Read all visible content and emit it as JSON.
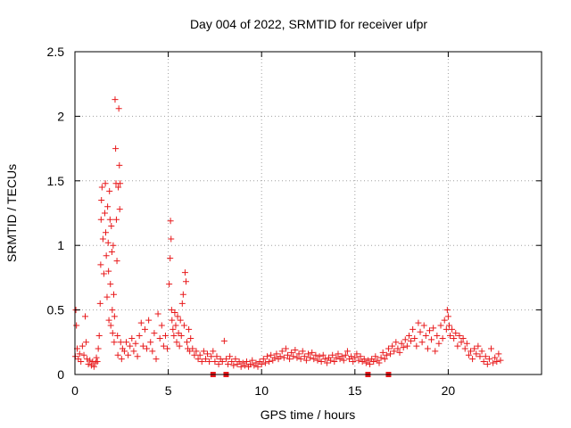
{
  "chart_data": {
    "type": "scatter",
    "title": "Day 004 of 2022, SRMTID for receiver ufpr",
    "xlabel": "GPS time / hours",
    "ylabel": "SRMTID / TECUs",
    "xlim": [
      0,
      25
    ],
    "ylim": [
      0,
      2.5
    ],
    "xticks": [
      0,
      5,
      10,
      15,
      20
    ],
    "xtick_labels": [
      "0",
      "5",
      "10",
      "15",
      "20"
    ],
    "yticks": [
      0,
      0.5,
      1,
      1.5,
      2,
      2.5
    ],
    "ytick_labels": [
      "0",
      "0.5",
      "1",
      "1.5",
      "2",
      "2.5"
    ],
    "grid": true,
    "marker": "plus",
    "color": "#e8191b",
    "series": [
      {
        "name": "SRMTID",
        "points": [
          [
            0.02,
            0.14
          ],
          [
            0.05,
            0.5
          ],
          [
            0.08,
            0.38
          ],
          [
            0.12,
            0.2
          ],
          [
            0.18,
            0.12
          ],
          [
            0.25,
            0.16
          ],
          [
            0.32,
            0.1
          ],
          [
            0.4,
            0.22
          ],
          [
            0.48,
            0.15
          ],
          [
            0.55,
            0.45
          ],
          [
            0.6,
            0.25
          ],
          [
            0.65,
            0.12
          ],
          [
            0.72,
            0.08
          ],
          [
            0.8,
            0.11
          ],
          [
            0.88,
            0.07
          ],
          [
            0.95,
            0.1
          ],
          [
            1.02,
            0.06
          ],
          [
            1.1,
            0.09
          ],
          [
            1.15,
            0.13
          ],
          [
            1.2,
            0.1
          ],
          [
            1.25,
            0.2
          ],
          [
            1.3,
            0.3
          ],
          [
            1.35,
            0.55
          ],
          [
            1.38,
            0.85
          ],
          [
            1.4,
            1.2
          ],
          [
            1.42,
            1.35
          ],
          [
            1.45,
            1.45
          ],
          [
            1.5,
            1.05
          ],
          [
            1.55,
            0.78
          ],
          [
            1.6,
            1.25
          ],
          [
            1.63,
            1.48
          ],
          [
            1.65,
            1.1
          ],
          [
            1.68,
            0.92
          ],
          [
            1.72,
            0.6
          ],
          [
            1.75,
            1.3
          ],
          [
            1.78,
            1.02
          ],
          [
            1.8,
            0.8
          ],
          [
            1.82,
            0.42
          ],
          [
            1.85,
            1.42
          ],
          [
            1.88,
            1.2
          ],
          [
            1.9,
            0.7
          ],
          [
            1.92,
            0.38
          ],
          [
            1.95,
            1.15
          ],
          [
            1.98,
            0.95
          ],
          [
            2.0,
            0.5
          ],
          [
            2.02,
            0.32
          ],
          [
            2.05,
            1.0
          ],
          [
            2.08,
            0.62
          ],
          [
            2.1,
            0.25
          ],
          [
            2.12,
            0.45
          ],
          [
            2.15,
            2.13
          ],
          [
            2.18,
            1.75
          ],
          [
            2.2,
            1.48
          ],
          [
            2.22,
            1.2
          ],
          [
            2.25,
            0.88
          ],
          [
            2.28,
            0.3
          ],
          [
            2.3,
            0.15
          ],
          [
            2.32,
            1.45
          ],
          [
            2.35,
            2.06
          ],
          [
            2.38,
            1.62
          ],
          [
            2.4,
            1.28
          ],
          [
            2.42,
            1.48
          ],
          [
            2.45,
            0.25
          ],
          [
            2.5,
            0.12
          ],
          [
            2.55,
            0.2
          ],
          [
            2.65,
            0.18
          ],
          [
            2.75,
            0.25
          ],
          [
            2.85,
            0.15
          ],
          [
            2.95,
            0.22
          ],
          [
            3.05,
            0.28
          ],
          [
            3.15,
            0.18
          ],
          [
            3.25,
            0.24
          ],
          [
            3.35,
            0.14
          ],
          [
            3.45,
            0.3
          ],
          [
            3.55,
            0.4
          ],
          [
            3.65,
            0.22
          ],
          [
            3.75,
            0.35
          ],
          [
            3.85,
            0.2
          ],
          [
            3.95,
            0.42
          ],
          [
            4.05,
            0.25
          ],
          [
            4.15,
            0.18
          ],
          [
            4.25,
            0.32
          ],
          [
            4.35,
            0.12
          ],
          [
            4.45,
            0.47
          ],
          [
            4.55,
            0.28
          ],
          [
            4.65,
            0.38
          ],
          [
            4.75,
            0.22
          ],
          [
            4.85,
            0.3
          ],
          [
            4.95,
            0.2
          ],
          [
            5.05,
            0.7
          ],
          [
            5.1,
            0.9
          ],
          [
            5.12,
            1.19
          ],
          [
            5.15,
            1.05
          ],
          [
            5.18,
            0.5
          ],
          [
            5.2,
            0.42
          ],
          [
            5.25,
            0.35
          ],
          [
            5.3,
            0.3
          ],
          [
            5.35,
            0.48
          ],
          [
            5.4,
            0.38
          ],
          [
            5.45,
            0.25
          ],
          [
            5.5,
            0.45
          ],
          [
            5.55,
            0.32
          ],
          [
            5.6,
            0.22
          ],
          [
            5.65,
            0.42
          ],
          [
            5.7,
            0.3
          ],
          [
            5.75,
            0.55
          ],
          [
            5.8,
            0.62
          ],
          [
            5.85,
            0.38
          ],
          [
            5.9,
            0.79
          ],
          [
            5.95,
            0.72
          ],
          [
            6.0,
            0.25
          ],
          [
            6.05,
            0.2
          ],
          [
            6.1,
            0.35
          ],
          [
            6.15,
            0.18
          ],
          [
            6.2,
            0.28
          ],
          [
            6.3,
            0.2
          ],
          [
            6.4,
            0.15
          ],
          [
            6.5,
            0.18
          ],
          [
            6.6,
            0.12
          ],
          [
            6.7,
            0.15
          ],
          [
            6.8,
            0.1
          ],
          [
            6.9,
            0.18
          ],
          [
            7.0,
            0.12
          ],
          [
            7.1,
            0.16
          ],
          [
            7.2,
            0.1
          ],
          [
            7.3,
            0.14
          ],
          [
            7.4,
            0.18
          ],
          [
            7.5,
            0.1
          ],
          [
            7.6,
            0.14
          ],
          [
            7.7,
            0.08
          ],
          [
            7.8,
            0.12
          ],
          [
            7.9,
            0.1
          ],
          [
            8.0,
            0.26
          ],
          [
            8.1,
            0.12
          ],
          [
            8.2,
            0.08
          ],
          [
            8.3,
            0.14
          ],
          [
            8.4,
            0.1
          ],
          [
            8.5,
            0.07
          ],
          [
            8.6,
            0.12
          ],
          [
            8.7,
            0.08
          ],
          [
            8.8,
            0.1
          ],
          [
            8.9,
            0.06
          ],
          [
            9.0,
            0.09
          ],
          [
            9.1,
            0.07
          ],
          [
            9.2,
            0.1
          ],
          [
            9.3,
            0.06
          ],
          [
            9.4,
            0.08
          ],
          [
            9.5,
            0.11
          ],
          [
            9.6,
            0.07
          ],
          [
            9.7,
            0.09
          ],
          [
            9.8,
            0.06
          ],
          [
            9.9,
            0.1
          ],
          [
            10.0,
            0.08
          ],
          [
            10.1,
            0.12
          ],
          [
            10.2,
            0.09
          ],
          [
            10.3,
            0.14
          ],
          [
            10.4,
            0.1
          ],
          [
            10.5,
            0.15
          ],
          [
            10.6,
            0.11
          ],
          [
            10.7,
            0.13
          ],
          [
            10.8,
            0.16
          ],
          [
            10.9,
            0.12
          ],
          [
            11.0,
            0.14
          ],
          [
            11.1,
            0.18
          ],
          [
            11.2,
            0.13
          ],
          [
            11.3,
            0.2
          ],
          [
            11.4,
            0.15
          ],
          [
            11.5,
            0.12
          ],
          [
            11.6,
            0.17
          ],
          [
            11.7,
            0.14
          ],
          [
            11.8,
            0.19
          ],
          [
            11.9,
            0.13
          ],
          [
            12.0,
            0.16
          ],
          [
            12.1,
            0.12
          ],
          [
            12.2,
            0.18
          ],
          [
            12.3,
            0.14
          ],
          [
            12.4,
            0.11
          ],
          [
            12.5,
            0.16
          ],
          [
            12.6,
            0.13
          ],
          [
            12.7,
            0.17
          ],
          [
            12.8,
            0.12
          ],
          [
            12.9,
            0.15
          ],
          [
            13.0,
            0.11
          ],
          [
            13.1,
            0.14
          ],
          [
            13.2,
            0.1
          ],
          [
            13.3,
            0.15
          ],
          [
            13.4,
            0.12
          ],
          [
            13.5,
            0.09
          ],
          [
            13.6,
            0.13
          ],
          [
            13.7,
            0.11
          ],
          [
            13.8,
            0.15
          ],
          [
            13.9,
            0.1
          ],
          [
            14.0,
            0.13
          ],
          [
            14.1,
            0.16
          ],
          [
            14.2,
            0.12
          ],
          [
            14.3,
            0.14
          ],
          [
            14.4,
            0.11
          ],
          [
            14.5,
            0.15
          ],
          [
            14.6,
            0.18
          ],
          [
            14.7,
            0.12
          ],
          [
            14.8,
            0.14
          ],
          [
            14.9,
            0.1
          ],
          [
            15.0,
            0.13
          ],
          [
            15.1,
            0.16
          ],
          [
            15.2,
            0.11
          ],
          [
            15.3,
            0.14
          ],
          [
            15.4,
            0.1
          ],
          [
            15.5,
            0.12
          ],
          [
            15.6,
            0.09
          ],
          [
            15.7,
            0.11
          ],
          [
            15.8,
            0.08
          ],
          [
            15.9,
            0.12
          ],
          [
            16.0,
            0.1
          ],
          [
            16.1,
            0.14
          ],
          [
            16.2,
            0.11
          ],
          [
            16.3,
            0.09
          ],
          [
            16.4,
            0.13
          ],
          [
            16.5,
            0.17
          ],
          [
            16.6,
            0.12
          ],
          [
            16.7,
            0.15
          ],
          [
            16.8,
            0.2
          ],
          [
            16.9,
            0.16
          ],
          [
            17.0,
            0.22
          ],
          [
            17.1,
            0.18
          ],
          [
            17.2,
            0.25
          ],
          [
            17.3,
            0.2
          ],
          [
            17.4,
            0.17
          ],
          [
            17.5,
            0.24
          ],
          [
            17.6,
            0.21
          ],
          [
            17.7,
            0.27
          ],
          [
            17.8,
            0.22
          ],
          [
            17.9,
            0.3
          ],
          [
            18.0,
            0.26
          ],
          [
            18.1,
            0.35
          ],
          [
            18.2,
            0.28
          ],
          [
            18.3,
            0.22
          ],
          [
            18.4,
            0.4
          ],
          [
            18.5,
            0.33
          ],
          [
            18.6,
            0.25
          ],
          [
            18.7,
            0.38
          ],
          [
            18.8,
            0.3
          ],
          [
            18.9,
            0.2
          ],
          [
            19.0,
            0.34
          ],
          [
            19.1,
            0.27
          ],
          [
            19.2,
            0.36
          ],
          [
            19.3,
            0.18
          ],
          [
            19.4,
            0.3
          ],
          [
            19.5,
            0.24
          ],
          [
            19.6,
            0.38
          ],
          [
            19.7,
            0.28
          ],
          [
            19.8,
            0.42
          ],
          [
            19.9,
            0.35
          ],
          [
            19.95,
            0.5
          ],
          [
            20.0,
            0.45
          ],
          [
            20.05,
            0.38
          ],
          [
            20.1,
            0.3
          ],
          [
            20.2,
            0.35
          ],
          [
            20.3,
            0.28
          ],
          [
            20.4,
            0.32
          ],
          [
            20.5,
            0.22
          ],
          [
            20.6,
            0.3
          ],
          [
            20.7,
            0.25
          ],
          [
            20.8,
            0.28
          ],
          [
            20.9,
            0.2
          ],
          [
            21.0,
            0.24
          ],
          [
            21.1,
            0.15
          ],
          [
            21.2,
            0.18
          ],
          [
            21.3,
            0.12
          ],
          [
            21.4,
            0.2
          ],
          [
            21.5,
            0.16
          ],
          [
            21.6,
            0.22
          ],
          [
            21.7,
            0.14
          ],
          [
            21.8,
            0.18
          ],
          [
            21.9,
            0.1
          ],
          [
            22.0,
            0.14
          ],
          [
            22.1,
            0.08
          ],
          [
            22.2,
            0.12
          ],
          [
            22.3,
            0.2
          ],
          [
            22.4,
            0.09
          ],
          [
            22.5,
            0.13
          ],
          [
            22.6,
            0.1
          ],
          [
            22.7,
            0.16
          ],
          [
            22.8,
            0.11
          ]
        ]
      }
    ],
    "bad_points": [
      [
        7.4,
        0
      ],
      [
        8.1,
        0
      ],
      [
        15.7,
        0
      ],
      [
        16.8,
        0
      ]
    ]
  }
}
